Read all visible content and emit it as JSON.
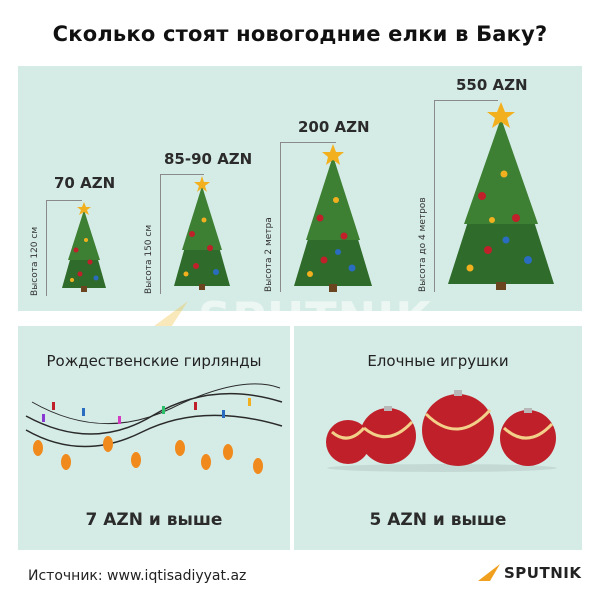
{
  "title": "Сколько стоят новогодние елки в Баку?",
  "trees": [
    {
      "price": "70 AZN",
      "height": "Высота 120 см"
    },
    {
      "price": "85-90 AZN",
      "height": "Высота 150 см"
    },
    {
      "price": "200 AZN",
      "height": "Высота 2 метра"
    },
    {
      "price": "550 AZN",
      "height": "Высота до 4 метров"
    }
  ],
  "garlands": {
    "title": "Рождественские гирлянды",
    "price": "7 AZN и выше"
  },
  "toys": {
    "title": "Елочные игрушки",
    "price": "5 AZN и выше"
  },
  "watermark": "SPUTNIK",
  "footer": {
    "source": "Источник: www.iqtisadiyyat.az",
    "logo": "SPUTNIK"
  },
  "colors": {
    "panel": "#d5ece6",
    "tree": "#2f6b2a",
    "star": "#f2b01e",
    "ornament": "#c0202a",
    "bulb": "#f08a1c"
  }
}
